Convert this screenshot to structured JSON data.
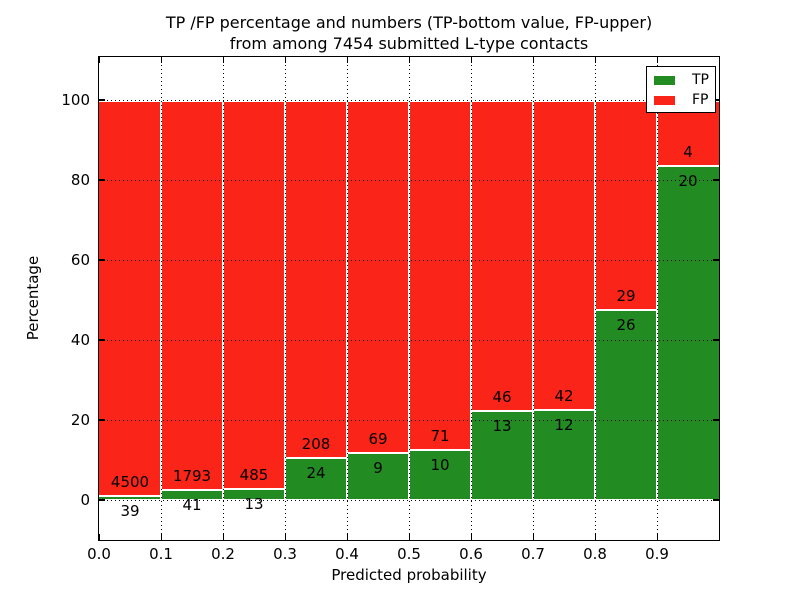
{
  "chart_data": {
    "type": "bar",
    "subtype": "stacked-percentage-histogram",
    "title_line1": "TP /FP percentage and numbers (TP-bottom value, FP-upper)",
    "title_line2": "from among 7454 submitted L-type contacts",
    "xlabel": "Predicted probability",
    "ylabel": "Percentage",
    "x_tick_labels": [
      "0.0",
      "0.1",
      "0.2",
      "0.3",
      "0.4",
      "0.5",
      "0.6",
      "0.7",
      "0.8",
      "0.9"
    ],
    "y_tick_values": [
      0,
      20,
      40,
      60,
      80,
      100
    ],
    "y_tick_labels": [
      "0",
      "20",
      "40",
      "60",
      "80",
      "100"
    ],
    "xlim": [
      0.0,
      1.0
    ],
    "ylim": [
      -10,
      110.75
    ],
    "bin_edges": [
      0.0,
      0.1,
      0.2,
      0.3,
      0.4,
      0.5,
      0.6,
      0.7,
      0.8,
      0.9,
      1.0
    ],
    "grid": {
      "visible": true,
      "style": "dotted",
      "color": "#000000"
    },
    "stack_total_percent": 100,
    "total_contacts": 7454,
    "series": [
      {
        "name": "TP",
        "color": "#228b22",
        "counts": [
          39,
          41,
          13,
          24,
          9,
          10,
          13,
          12,
          26,
          20
        ],
        "percent_of_bin": [
          0.86,
          2.24,
          2.61,
          10.34,
          11.54,
          12.35,
          22.03,
          22.22,
          47.27,
          83.33
        ]
      },
      {
        "name": "FP",
        "color": "#fa2419",
        "counts": [
          4500,
          1793,
          485,
          208,
          69,
          71,
          46,
          42,
          29,
          4
        ],
        "percent_of_bin": [
          99.14,
          97.76,
          97.39,
          89.66,
          88.46,
          87.65,
          77.97,
          77.78,
          52.73,
          16.67
        ]
      }
    ],
    "legend": {
      "position": "upper-right",
      "entries": [
        "TP",
        "FP"
      ]
    }
  }
}
